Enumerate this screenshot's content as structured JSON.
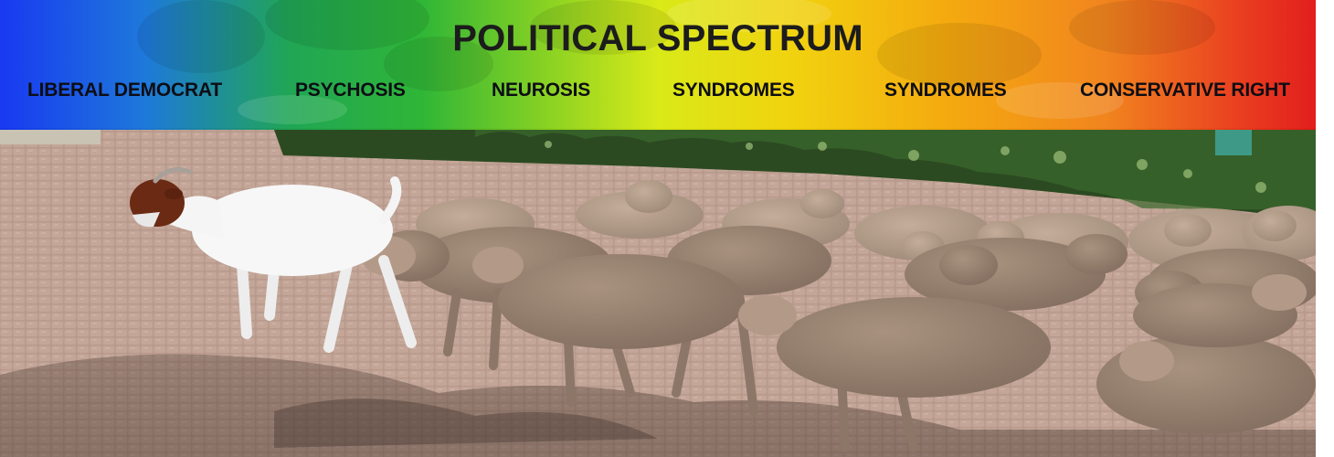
{
  "banner": {
    "title": "POLITICAL SPECTRUM",
    "labels": [
      "LIBERAL DEMOCRAT",
      "PSYCHOSIS",
      "NEUROSIS",
      "SYNDROMES",
      "SYNDROMES",
      "CONSERVATIVE RIGHT"
    ],
    "gradient_colors": [
      "#0a2cf0",
      "#12a04a",
      "#d7e80a",
      "#f0d000",
      "#f07d10",
      "#e0100e"
    ]
  },
  "photo": {
    "subject": "white-goat-leading-flock-of-sheep",
    "colors": {
      "pavement": "#b89a8c",
      "hedge": "#2c4a22",
      "sheep_wool": "#9a8474",
      "goat_body": "#f7f7f7",
      "goat_head": "#6b2a14"
    }
  }
}
